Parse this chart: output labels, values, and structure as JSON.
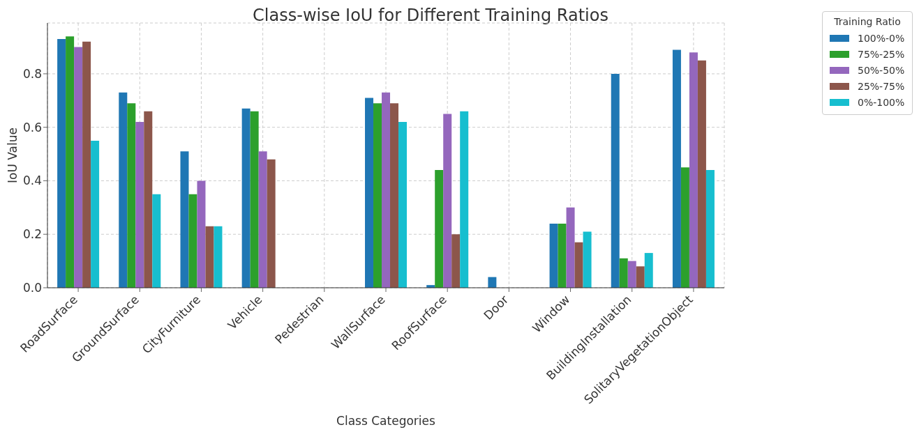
{
  "chart_data": {
    "type": "bar",
    "title": "Class-wise IoU for Different Training Ratios",
    "xlabel": "Class Categories",
    "ylabel": "IoU Value",
    "legend_title": "Training Ratio",
    "categories": [
      "RoadSurface",
      "GroundSurface",
      "CityFurniture",
      "Vehicle",
      "Pedestrian",
      "WallSurface",
      "RoofSurface",
      "Door",
      "Window",
      "BuildingInstallation",
      "SolitaryVegetationObject"
    ],
    "series": [
      {
        "name": "100%-0%",
        "color": "#1f77b4",
        "values": [
          0.93,
          0.73,
          0.51,
          0.67,
          0,
          0.71,
          0.01,
          0.04,
          0.24,
          0.8,
          0.89
        ]
      },
      {
        "name": "75%-25%",
        "color": "#2ca02c",
        "values": [
          0.94,
          0.69,
          0.35,
          0.66,
          0,
          0.69,
          0.44,
          0,
          0.24,
          0.11,
          0.45
        ]
      },
      {
        "name": "50%-50%",
        "color": "#9467bd",
        "values": [
          0.9,
          0.62,
          0.4,
          0.51,
          0,
          0.73,
          0.65,
          0,
          0.3,
          0.1,
          0.88
        ]
      },
      {
        "name": "25%-75%",
        "color": "#8c564b",
        "values": [
          0.92,
          0.66,
          0.23,
          0.48,
          0,
          0.69,
          0.2,
          0,
          0.17,
          0.08,
          0.85
        ]
      },
      {
        "name": "0%-100%",
        "color": "#17becf",
        "values": [
          0.55,
          0.35,
          0.23,
          0,
          0,
          0.62,
          0.66,
          0,
          0.21,
          0.13,
          0.44
        ]
      }
    ],
    "ylim": [
      0,
      0.99
    ],
    "yticks": [
      {
        "value": 0,
        "label": "0.0"
      },
      {
        "value": 0.2,
        "label": "0.2"
      },
      {
        "value": 0.4,
        "label": "0.4"
      },
      {
        "value": 0.6,
        "label": "0.6"
      },
      {
        "value": 0.8,
        "label": "0.8"
      }
    ],
    "grid": true,
    "legend": "top right"
  }
}
